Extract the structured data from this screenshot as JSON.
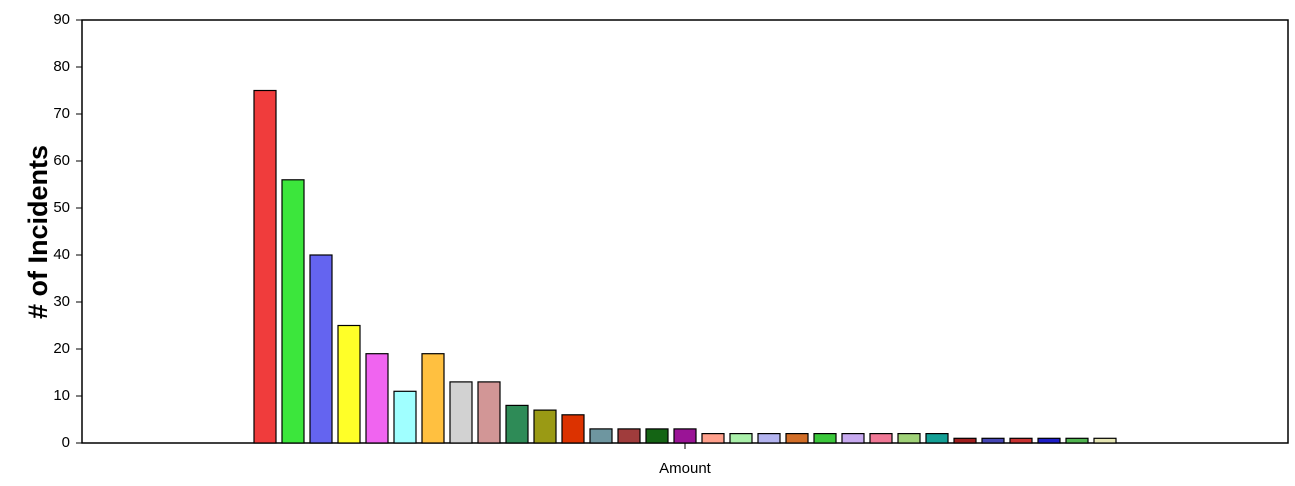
{
  "chart_data": {
    "type": "bar",
    "y_label": "# of Incidents",
    "categories": [
      "Amount"
    ],
    "ylim": [
      0,
      90
    ],
    "yticks": [
      0,
      10,
      20,
      30,
      40,
      50,
      60,
      70,
      80,
      90
    ],
    "grid": false,
    "series": [
      {
        "color": "#f03c3c",
        "values": [
          75
        ]
      },
      {
        "color": "#3ce63c",
        "values": [
          56
        ]
      },
      {
        "color": "#6464f0",
        "values": [
          40
        ]
      },
      {
        "color": "#ffff28",
        "values": [
          25
        ]
      },
      {
        "color": "#f064f0",
        "values": [
          19
        ]
      },
      {
        "color": "#a0ffff",
        "values": [
          11
        ]
      },
      {
        "color": "#ffc040",
        "values": [
          19
        ]
      },
      {
        "color": "#d2d2d2",
        "values": [
          13
        ]
      },
      {
        "color": "#d29696",
        "values": [
          13
        ]
      },
      {
        "color": "#2e8b57",
        "values": [
          8
        ]
      },
      {
        "color": "#9a9a14",
        "values": [
          7
        ]
      },
      {
        "color": "#dc3200",
        "values": [
          6
        ]
      },
      {
        "color": "#6e96a0",
        "values": [
          3
        ]
      },
      {
        "color": "#a03c3c",
        "values": [
          3
        ]
      },
      {
        "color": "#146414",
        "values": [
          3
        ]
      },
      {
        "color": "#9a1496",
        "values": [
          3
        ]
      },
      {
        "color": "#ffa08c",
        "values": [
          2
        ]
      },
      {
        "color": "#aaf0aa",
        "values": [
          2
        ]
      },
      {
        "color": "#b4b4f0",
        "values": [
          2
        ]
      },
      {
        "color": "#d26e28",
        "values": [
          2
        ]
      },
      {
        "color": "#3cc83c",
        "values": [
          2
        ]
      },
      {
        "color": "#c8aaf0",
        "values": [
          2
        ]
      },
      {
        "color": "#f07896",
        "values": [
          2
        ]
      },
      {
        "color": "#a0d278",
        "values": [
          2
        ]
      },
      {
        "color": "#14a096",
        "values": [
          2
        ]
      },
      {
        "color": "#a01e1e",
        "values": [
          1
        ]
      },
      {
        "color": "#4646b4",
        "values": [
          1
        ]
      },
      {
        "color": "#c83232",
        "values": [
          1
        ]
      },
      {
        "color": "#1e1ec8",
        "values": [
          1
        ]
      },
      {
        "color": "#50b450",
        "values": [
          1
        ]
      },
      {
        "color": "#e6e6b4",
        "values": [
          1
        ]
      }
    ]
  }
}
